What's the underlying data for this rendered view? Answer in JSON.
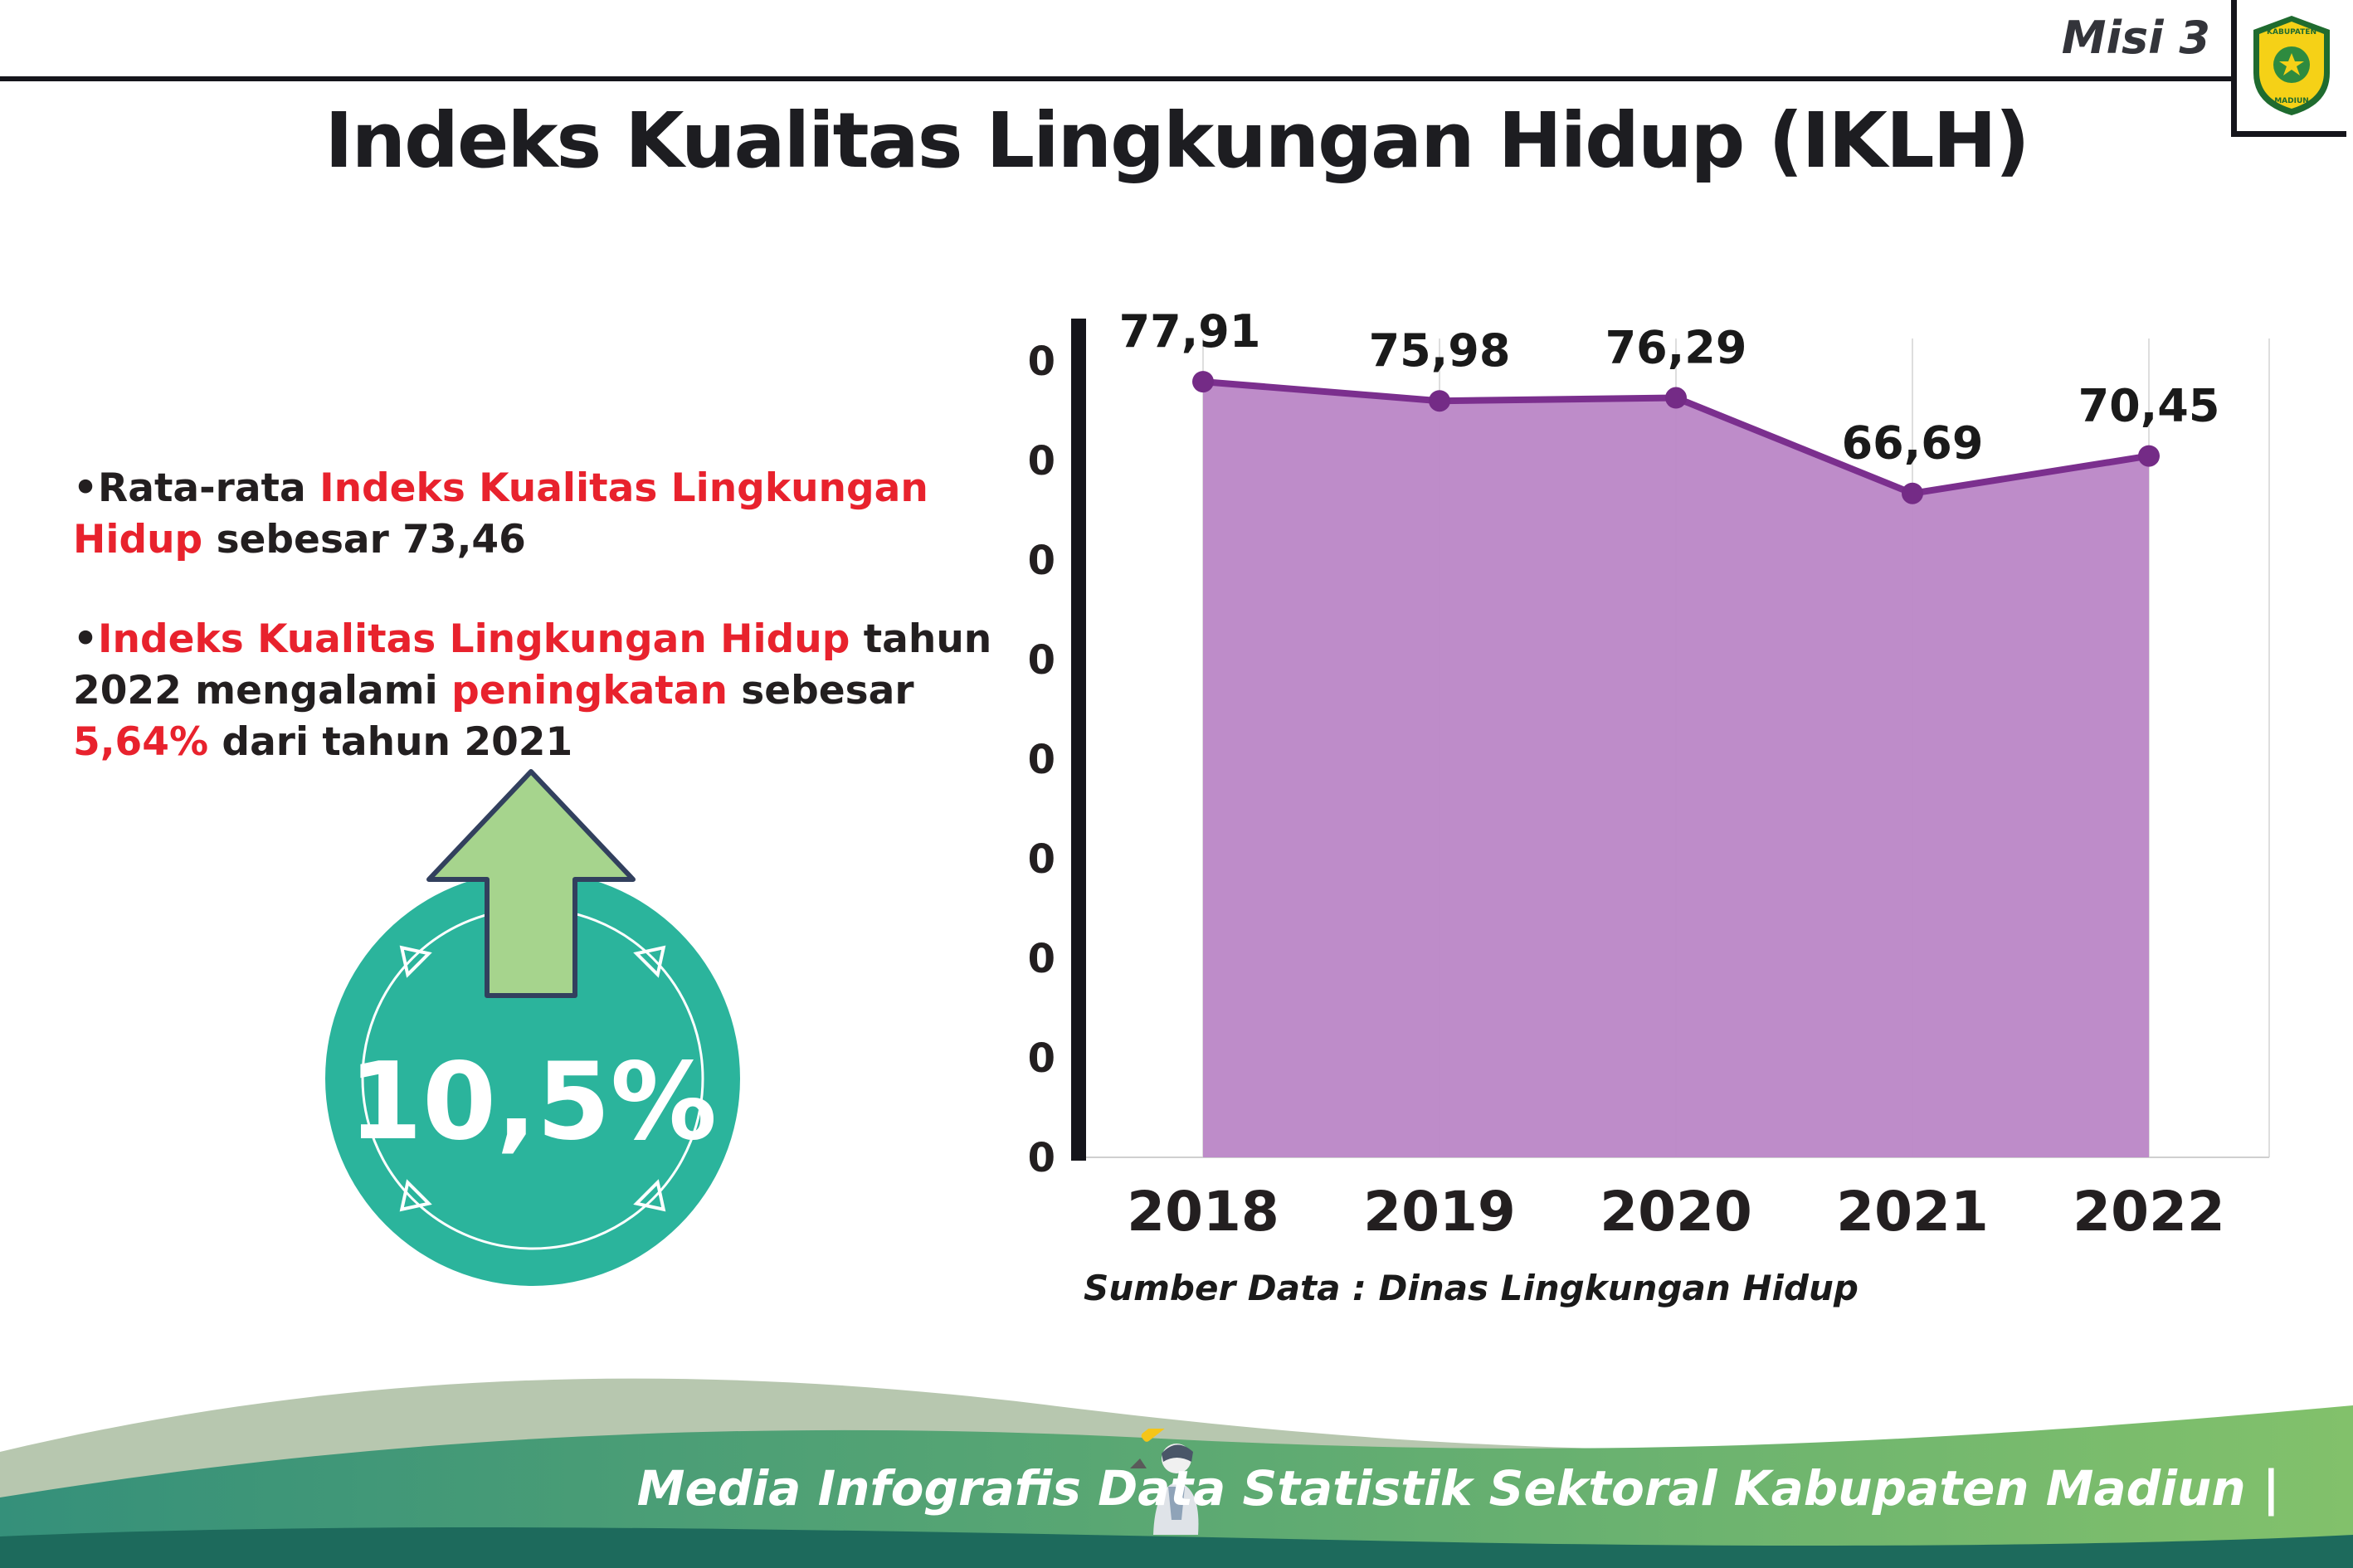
{
  "page": {
    "misi_label": "Misi 3",
    "title": "Indeks Kualitas Lingkungan Hidup (IKLH)",
    "source_note": "Sumber Data : Dinas Lingkungan Hidup",
    "footer_text": "Media Infografis Data Statistik Sektoral Kabupaten Madiun |"
  },
  "logo": {
    "line1": "KABUPATEN",
    "line2": "MADIUN"
  },
  "bullets": [
    {
      "segments": [
        {
          "text": "•",
          "color": "#231f20"
        },
        {
          "text": "Rata-rata ",
          "color": "#231f20"
        },
        {
          "text": "Indeks Kualitas Lingkungan Hidup",
          "color": "#e8222d"
        },
        {
          "text": " sebesar 73,46",
          "color": "#231f20"
        }
      ]
    },
    {
      "segments": [
        {
          "text": "•",
          "color": "#231f20"
        },
        {
          "text": "Indeks Kualitas Lingkungan Hidup",
          "color": "#e8222d"
        },
        {
          "text": " tahun 2022 mengalami ",
          "color": "#231f20"
        },
        {
          "text": "peningkatan",
          "color": "#e8222d"
        },
        {
          "text": " sebesar ",
          "color": "#231f20"
        },
        {
          "text": "5,64%",
          "color": "#e8222d"
        },
        {
          "text": " dari tahun 2021",
          "color": "#231f20"
        }
      ]
    }
  ],
  "badge": {
    "value": "10,5%",
    "circle_color": "#2bb49c",
    "arrow_color": "#a6d48d",
    "arrow_outline": "#32405e"
  },
  "chart_data": {
    "type": "area",
    "categories": [
      "2018",
      "2019",
      "2020",
      "2021",
      "2022"
    ],
    "values": [
      77.91,
      75.98,
      76.29,
      66.69,
      70.45
    ],
    "value_labels": [
      "77,91",
      "75,98",
      "76,29",
      "66,69",
      "70,45"
    ],
    "title": "",
    "xlabel": "",
    "ylabel": "",
    "ylim": [
      0,
      80
    ],
    "ytick_step": 10,
    "grid": "light-vertical",
    "legend": "none",
    "fill_color": "#bb86c6",
    "line_color": "#7b2f8e",
    "point_color": "#742b86",
    "axis_color": "#15151b",
    "label_color": "#1a1a1a"
  }
}
